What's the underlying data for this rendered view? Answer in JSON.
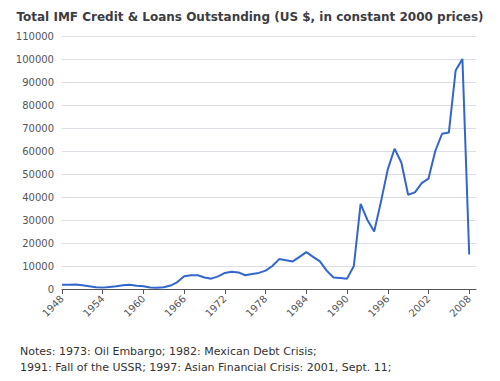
{
  "chart_data": {
    "type": "line",
    "title": "Total IMF Credit & Loans Outstanding (US $, in constant 2000 prices)",
    "annotations": [
      "Notes: 1973: Oil Embargo; 1982: Mexican Debt Crisis;",
      "1991: Fall of the USSR; 1997: Asian Financial Crisis: 2001, Sept. 11;"
    ],
    "color": "#3366CC",
    "x": [
      1948,
      1949,
      1950,
      1951,
      1952,
      1953,
      1954,
      1955,
      1956,
      1957,
      1958,
      1959,
      1960,
      1961,
      1962,
      1963,
      1964,
      1965,
      1966,
      1967,
      1968,
      1969,
      1970,
      1971,
      1972,
      1973,
      1974,
      1975,
      1976,
      1977,
      1978,
      1979,
      1980,
      1981,
      1982,
      1983,
      1984,
      1985,
      1986,
      1987,
      1988,
      1989,
      1990,
      1991,
      1992,
      1993,
      1994,
      1995,
      1996,
      1997,
      1998,
      1999,
      2000,
      2001,
      2002,
      2003,
      2004,
      2005,
      2006,
      2007,
      2008
    ],
    "values": [
      1800,
      1900,
      2000,
      1600,
      1200,
      800,
      600,
      900,
      1200,
      1600,
      1800,
      1400,
      1200,
      700,
      500,
      800,
      1500,
      3000,
      5500,
      6000,
      6000,
      5000,
      4500,
      5500,
      7000,
      7500,
      7200,
      6000,
      6500,
      7000,
      8000,
      10000,
      13000,
      12500,
      12000,
      14000,
      16000,
      14000,
      12000,
      8000,
      5000,
      4800,
      4500,
      10000,
      37000,
      30000,
      25000,
      38000,
      52000,
      61000,
      55000,
      41000,
      42000,
      46000,
      48000,
      60000,
      67500,
      68000,
      95000,
      100000,
      15000
    ],
    "xlim": [
      1948,
      2009
    ],
    "xticks": [
      1948,
      1954,
      1960,
      1966,
      1972,
      1978,
      1984,
      1990,
      1996,
      2002,
      2008
    ],
    "ylim": [
      0,
      110000
    ],
    "yticks": [
      0,
      10000,
      20000,
      30000,
      40000,
      50000,
      60000,
      70000,
      80000,
      90000,
      100000,
      110000
    ],
    "grid": true
  }
}
